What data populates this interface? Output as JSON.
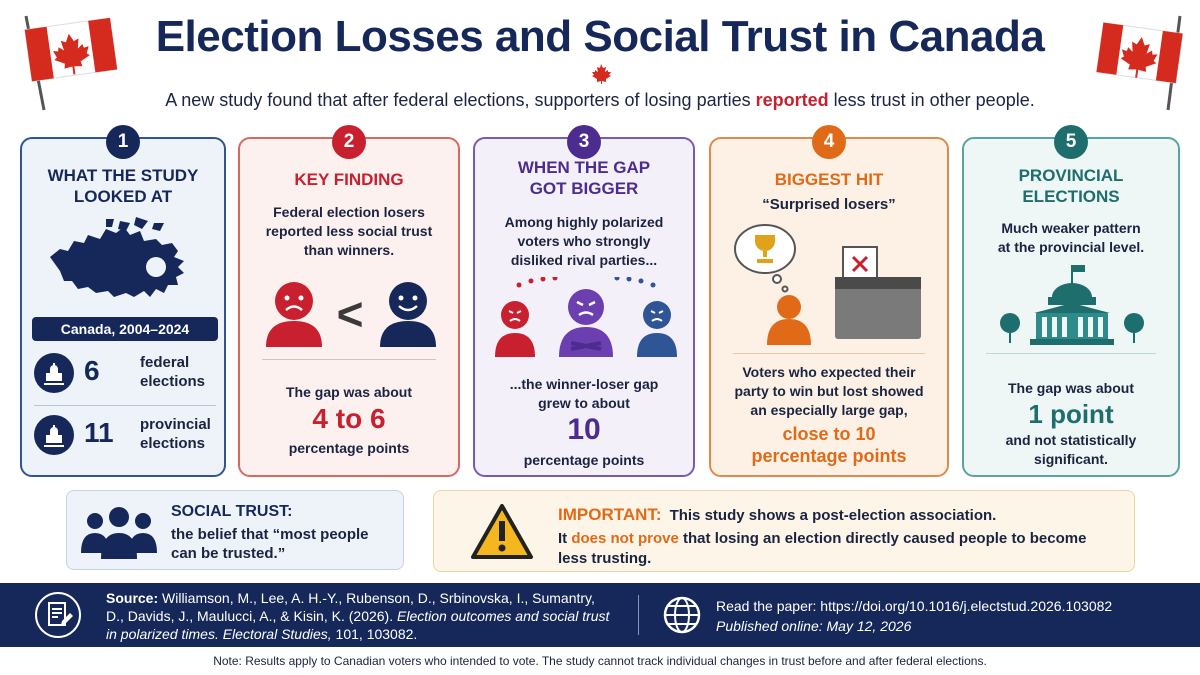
{
  "header": {
    "title": "Election Losses and Social Trust in Canada",
    "subtitle_before": "A new study found that after federal elections, supporters of losing parties ",
    "subtitle_highlight": "reported",
    "subtitle_after": " less trust in other people."
  },
  "cards": [
    {
      "number": "1",
      "title_line1": "WHAT THE STUDY",
      "title_line2": "LOOKED AT",
      "map_label": "Canada, 2004–2024",
      "stats": [
        {
          "value": "6",
          "label_line1": "federal",
          "label_line2": "elections"
        },
        {
          "value": "11",
          "label_line1": "provincial",
          "label_line2": "elections"
        }
      ]
    },
    {
      "number": "2",
      "title": "KEY FINDING",
      "text_line1": "Federal election losers",
      "text_line2": "reported less social trust",
      "text_line3": "than winners.",
      "compare_symbol": "<",
      "gap_intro": "The gap was about",
      "gap_value": "4 to 6",
      "gap_unit": "percentage points"
    },
    {
      "number": "3",
      "title_line1": "WHEN THE GAP",
      "title_line2": "GOT BIGGER",
      "text_line1": "Among highly polarized",
      "text_line2": "voters who strongly",
      "text_line3": "disliked rival parties...",
      "result_line1": "...the winner-loser gap",
      "result_line2": "grew to about",
      "gap_value": "10",
      "gap_unit": "percentage points"
    },
    {
      "number": "4",
      "title": "BIGGEST HIT",
      "subtitle": "“Surprised losers”",
      "text_line1": "Voters who expected their",
      "text_line2": "party to win but lost showed",
      "text_line3": "an especially large gap,",
      "highlight_line1": "close to 10",
      "highlight_line2": "percentage points"
    },
    {
      "number": "5",
      "title_line1": "PROVINCIAL",
      "title_line2": "ELECTIONS",
      "text_line1": "Much weaker pattern",
      "text_line2": "at the provincial level.",
      "gap_intro": "The gap was about",
      "gap_value": "1 point",
      "gap_note_line1": "and not statistically",
      "gap_note_line2": "significant."
    }
  ],
  "definition": {
    "title": "SOCIAL TRUST:",
    "text_line1": "the belief that “most people",
    "text_line2": "can be trusted.”"
  },
  "important": {
    "label": "IMPORTANT:",
    "line1_before": "This study shows a post-election ",
    "line1_bold": "association",
    "line1_after": ".",
    "line2_before": "It ",
    "line2_highlight": "does not prove",
    "line2_after": " that losing an election directly caused people to become less trusting."
  },
  "footer": {
    "source_label": "Source:",
    "source_authors": " Williamson, M., Lee, A. H.-Y., Rubenson, D., Srbinovska, I., Sumantry, D., Davids, J., Maulucci, A., & Kisin, K. (2026). ",
    "source_title": "Election outcomes and social trust in polarized times. Electoral Studies,",
    "source_after": " 101, 103082.",
    "read_text": "Read the paper: https://doi.org/10.1016/j.electstud.2026.103082",
    "published": "Published online: May 12, 2026"
  },
  "note": "Note: Results apply to Canadian voters who intended to vote. The study cannot track individual changes in trust before and after federal elections.",
  "colors": {
    "navy": "#16285a",
    "red": "#c8202f",
    "purple": "#4c2d8f",
    "orange": "#e06a17",
    "teal": "#1e6e6e"
  }
}
